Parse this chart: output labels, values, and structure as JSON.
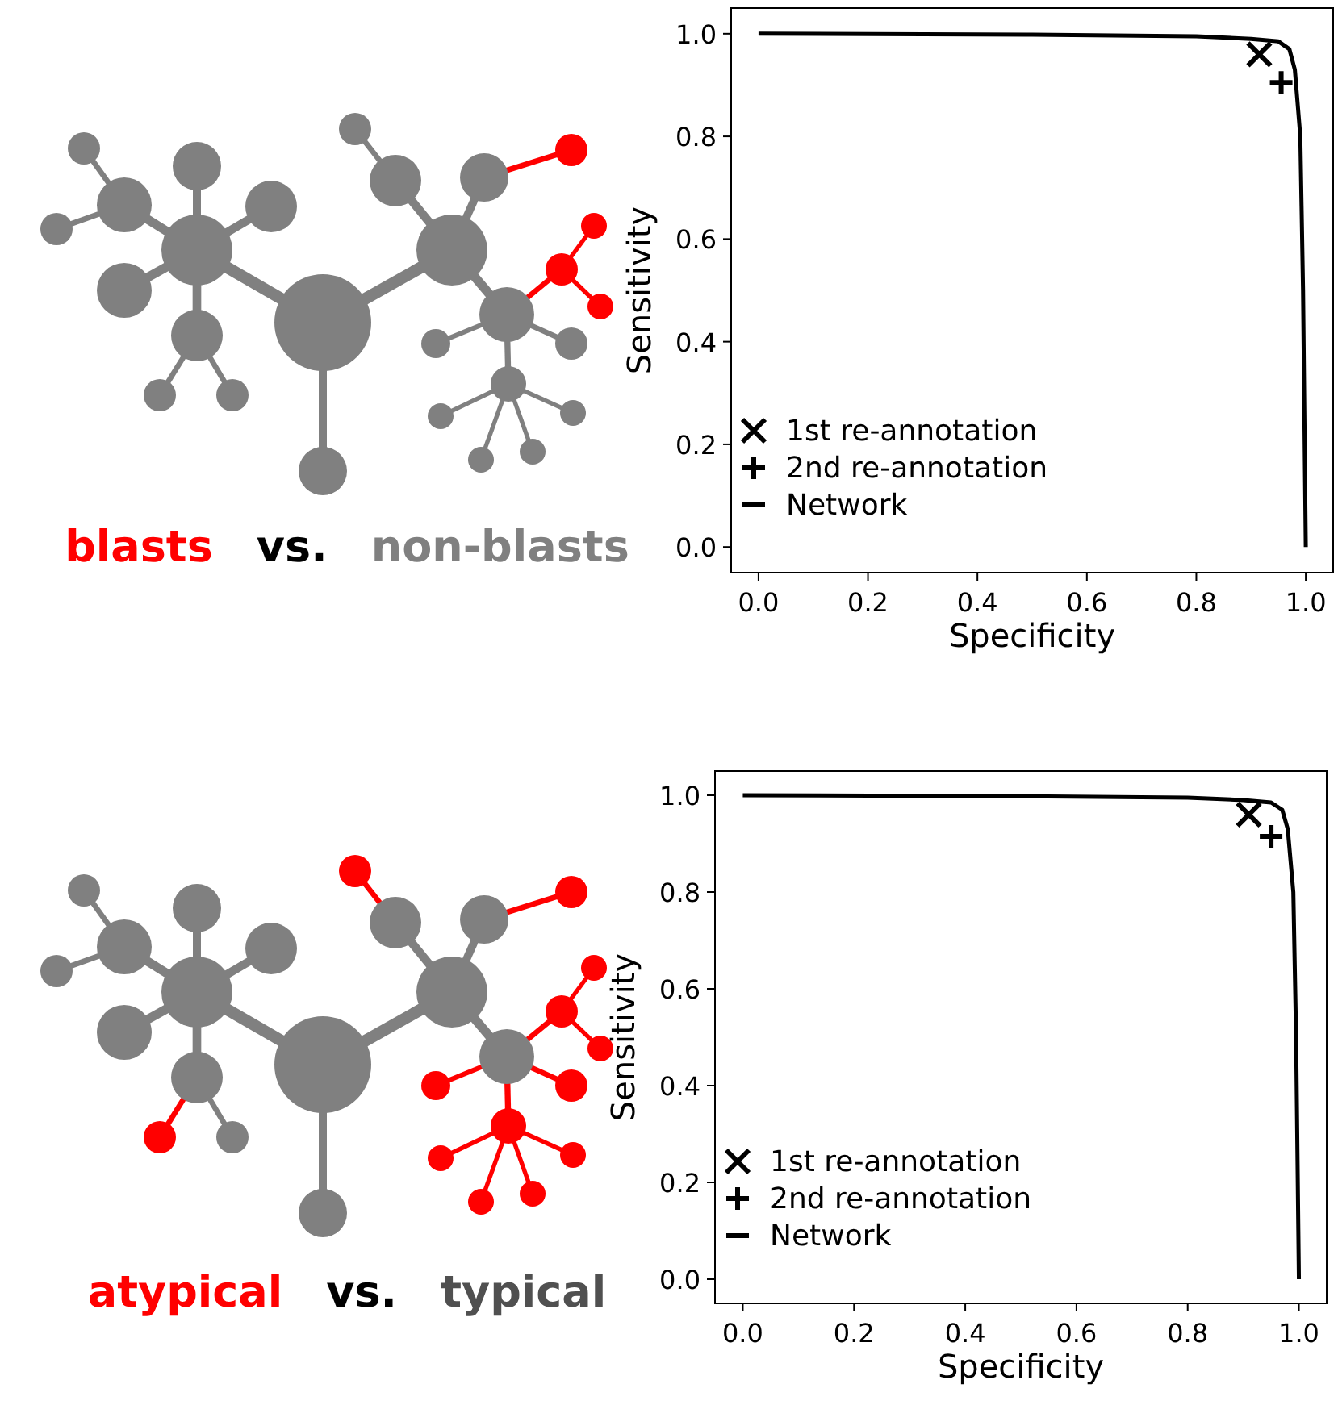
{
  "chart_data": [
    {
      "type": "line",
      "xlabel": "Specificity",
      "ylabel": "Sensitivity",
      "xlim": [
        -0.05,
        1.05
      ],
      "ylim": [
        -0.05,
        1.05
      ],
      "xticks": [
        {
          "value": 0,
          "label": "0.0"
        },
        {
          "value": 0.2,
          "label": "0.2"
        },
        {
          "value": 0.4,
          "label": "0.4"
        },
        {
          "value": 0.6,
          "label": "0.6"
        },
        {
          "value": 0.8,
          "label": "0.8"
        },
        {
          "value": 1,
          "label": "1.0"
        }
      ],
      "yticks": [
        {
          "value": 0,
          "label": "0.0"
        },
        {
          "value": 0.2,
          "label": "0.2"
        },
        {
          "value": 0.4,
          "label": "0.4"
        },
        {
          "value": 0.6,
          "label": "0.6"
        },
        {
          "value": 0.8,
          "label": "0.8"
        },
        {
          "value": 1,
          "label": "1.0"
        }
      ],
      "legend": "bottom left",
      "annotations": [
        "blasts",
        "vs.",
        "non-blasts"
      ],
      "series": [
        {
          "name": "1st re-annotation",
          "type": "scatter",
          "marker": "x",
          "color": "#000000",
          "x": [
            0.915
          ],
          "values": [
            0.96
          ]
        },
        {
          "name": "2nd re-annotation",
          "type": "scatter",
          "marker": "cross",
          "color": "#000000",
          "x": [
            0.955
          ],
          "values": [
            0.905
          ]
        },
        {
          "name": "Network",
          "type": "line",
          "marker": "none",
          "color": "#000000",
          "x": [
            0,
            0.5,
            0.8,
            0.9,
            0.95,
            0.97,
            0.98,
            0.99,
            0.995,
            1
          ],
          "values": [
            1,
            0.998,
            0.995,
            0.99,
            0.985,
            0.97,
            0.93,
            0.8,
            0.5,
            0
          ]
        }
      ]
    },
    {
      "type": "line",
      "xlabel": "Specificity",
      "ylabel": "Sensitivity",
      "xlim": [
        -0.05,
        1.05
      ],
      "ylim": [
        -0.05,
        1.05
      ],
      "xticks": [
        {
          "value": 0,
          "label": "0.0"
        },
        {
          "value": 0.2,
          "label": "0.2"
        },
        {
          "value": 0.4,
          "label": "0.4"
        },
        {
          "value": 0.6,
          "label": "0.6"
        },
        {
          "value": 0.8,
          "label": "0.8"
        },
        {
          "value": 1,
          "label": "1.0"
        }
      ],
      "yticks": [
        {
          "value": 0,
          "label": "0.0"
        },
        {
          "value": 0.2,
          "label": "0.2"
        },
        {
          "value": 0.4,
          "label": "0.4"
        },
        {
          "value": 0.6,
          "label": "0.6"
        },
        {
          "value": 0.8,
          "label": "0.8"
        },
        {
          "value": 1,
          "label": "1.0"
        }
      ],
      "legend": "bottom left",
      "annotations": [
        "atypical",
        "vs.",
        "typical"
      ],
      "series": [
        {
          "name": "1st re-annotation",
          "type": "scatter",
          "marker": "x",
          "color": "#000000",
          "x": [
            0.91
          ],
          "values": [
            0.96
          ]
        },
        {
          "name": "2nd re-annotation",
          "type": "scatter",
          "marker": "cross",
          "color": "#000000",
          "x": [
            0.95
          ],
          "values": [
            0.915
          ]
        },
        {
          "name": "Network",
          "type": "line",
          "marker": "none",
          "color": "#000000",
          "x": [
            0,
            0.5,
            0.8,
            0.9,
            0.95,
            0.97,
            0.98,
            0.99,
            0.995,
            1
          ],
          "values": [
            1,
            0.998,
            0.995,
            0.99,
            0.985,
            0.97,
            0.93,
            0.8,
            0.5,
            0
          ]
        }
      ]
    }
  ]
}
